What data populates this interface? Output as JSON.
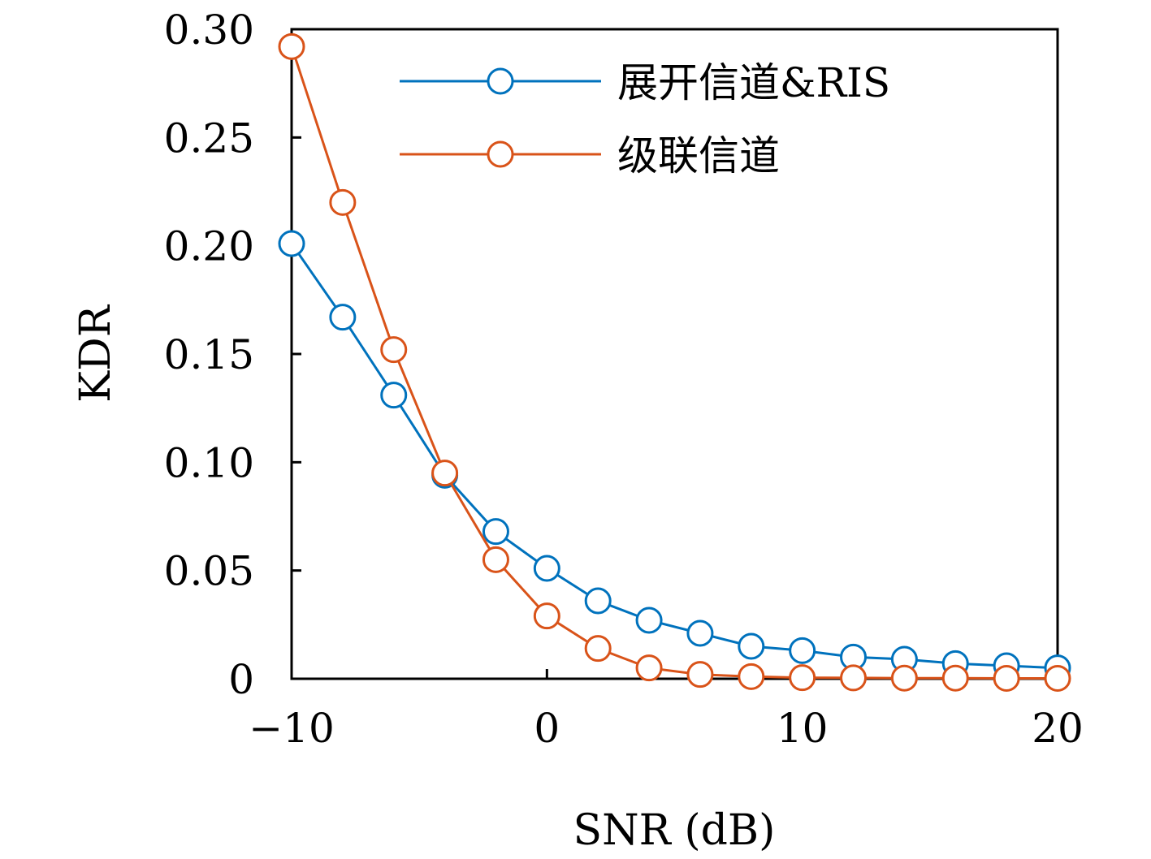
{
  "chart_data": {
    "type": "line",
    "title": "",
    "xlabel": "SNR (dB)",
    "ylabel": "KDR",
    "xlim": [
      -10,
      20
    ],
    "ylim": [
      0,
      0.3
    ],
    "x_ticks": [
      -10,
      0,
      10,
      20
    ],
    "x_tick_labels": [
      "−10",
      "0",
      "10",
      "20"
    ],
    "y_ticks": [
      0,
      0.05,
      0.1,
      0.15,
      0.2,
      0.25,
      0.3
    ],
    "y_tick_labels": [
      "0",
      "0.05",
      "0.10",
      "0.15",
      "0.20",
      "0.25",
      "0.30"
    ],
    "grid": false,
    "legend_position": "top-right",
    "x": [
      -10,
      -8,
      -6,
      -4,
      -2,
      0,
      2,
      4,
      6,
      8,
      10,
      12,
      14,
      16,
      18,
      20
    ],
    "series": [
      {
        "name": "展开信道&RIS",
        "color": "#0072BD",
        "marker": "circle-open",
        "values": [
          0.201,
          0.167,
          0.131,
          0.094,
          0.068,
          0.051,
          0.036,
          0.027,
          0.021,
          0.015,
          0.013,
          0.01,
          0.009,
          0.007,
          0.006,
          0.005
        ]
      },
      {
        "name": "级联信道",
        "color": "#D95319",
        "marker": "circle-open",
        "values": [
          0.292,
          0.22,
          0.152,
          0.095,
          0.055,
          0.029,
          0.014,
          0.005,
          0.002,
          0.001,
          0.0005,
          0.0004,
          0.0003,
          0.0003,
          0.0002,
          0.0002
        ]
      }
    ]
  }
}
